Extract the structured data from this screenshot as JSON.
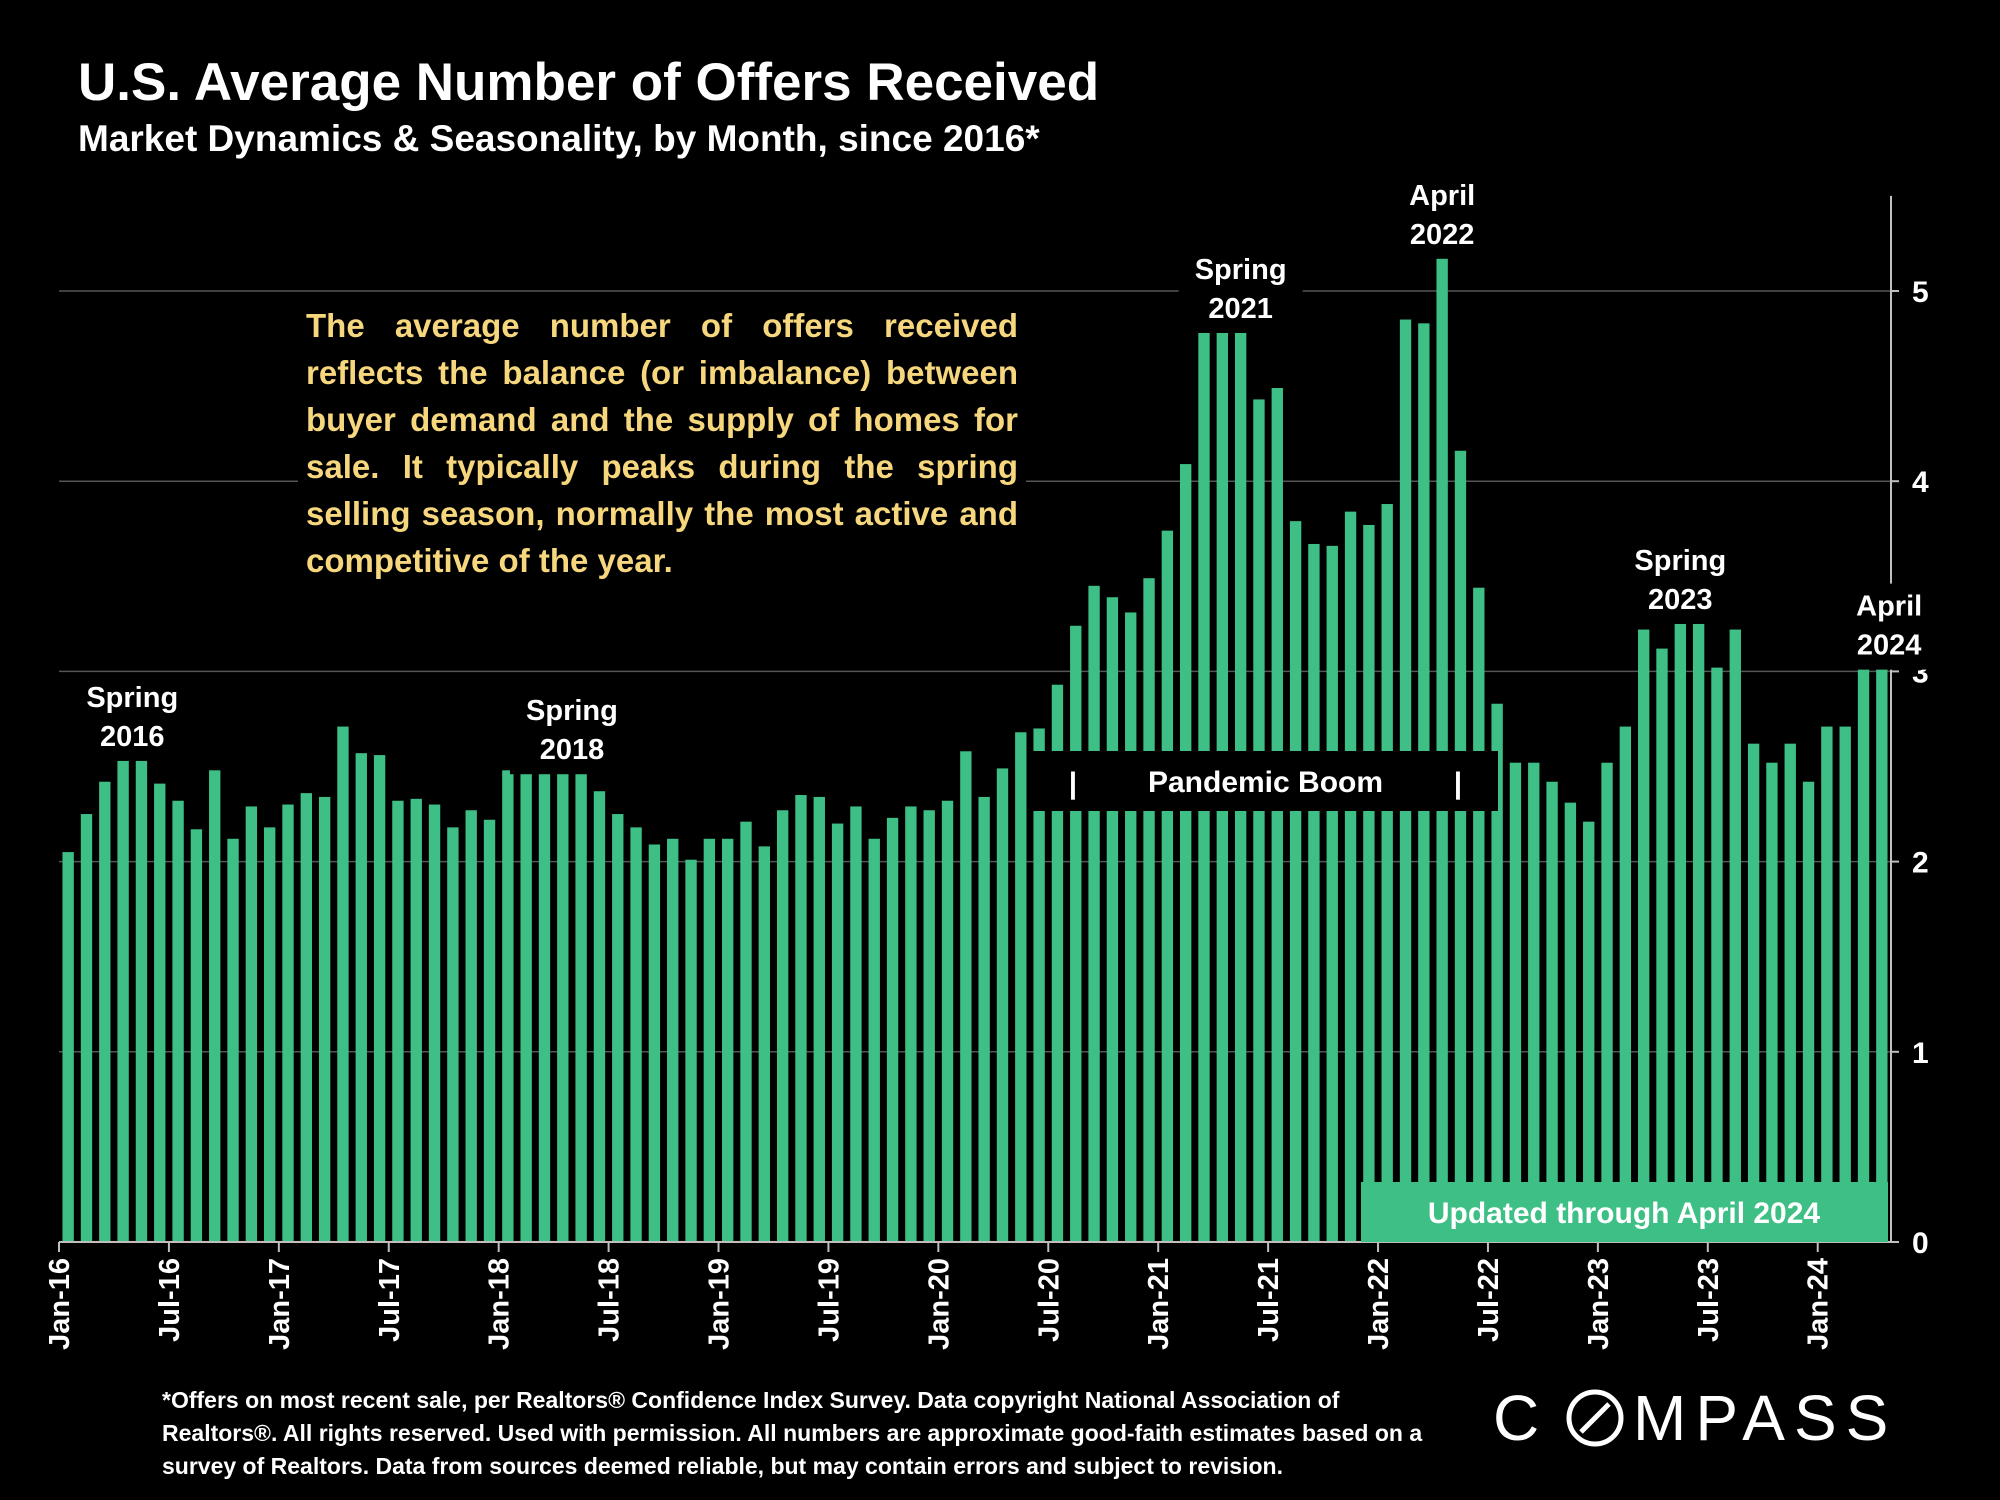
{
  "title": "U.S. Average Number of Offers Received",
  "subtitle": "Market Dynamics & Seasonality, by Month, since 2016*",
  "description": "The average number of offers received reflects the balance (or imbalance) between buyer demand and the supply of homes for sale. It typically peaks during the spring selling season, normally the most active and competitive of the year.",
  "footnote": "*Offers on most recent sale, per Realtors® Confidence Index Survey. Data copyright National Association of Realtors®. All rights reserved. Used with permission. All numbers are approximate good-faith estimates based on a survey of Realtors. Data from sources deemed reliable, but may contain errors and subject to revision.",
  "logo_text": "COMPASS",
  "colors": {
    "bar": "#3dbf85",
    "background": "#000000",
    "text": "#ffffff",
    "description_text": "#f6d77d",
    "gridline": "#555555"
  },
  "chart_data": {
    "type": "bar",
    "x_tick_labels": [
      "Jan-16",
      "Jul-16",
      "Jan-17",
      "Jul-17",
      "Jan-18",
      "Jul-18",
      "Jan-19",
      "Jul-19",
      "Jan-20",
      "Jul-20",
      "Jan-21",
      "Jul-21",
      "Jan-22",
      "Jul-22",
      "Jan-23",
      "Jul-23",
      "Jan-24"
    ],
    "y_ticks": [
      0,
      1,
      2,
      3,
      4,
      5
    ],
    "ylim": [
      0,
      5.5
    ],
    "y_axis_side": "right",
    "grid": true,
    "series": [
      {
        "values": [
          2.05,
          2.25,
          2.42,
          2.6,
          2.62,
          2.41,
          2.32,
          2.17,
          2.48,
          2.12,
          2.29,
          2.18,
          2.3,
          2.36,
          2.34,
          2.71,
          2.57,
          2.56,
          2.32,
          2.33,
          2.3,
          2.18,
          2.27,
          2.22,
          2.48,
          2.57,
          2.53,
          2.54,
          2.52,
          2.37,
          2.25,
          2.18,
          2.09,
          2.12,
          2.01,
          2.12,
          2.12,
          2.21,
          2.08,
          2.27,
          2.35,
          2.34,
          2.2,
          2.29,
          2.12,
          2.23,
          2.29,
          2.27,
          2.32,
          2.58,
          2.34,
          2.49,
          2.68,
          2.7,
          2.93,
          3.24,
          3.45,
          3.39,
          3.31,
          3.49,
          3.74,
          4.09,
          4.84,
          5.06,
          4.97,
          4.43,
          4.49,
          3.79,
          3.67,
          3.66,
          3.84,
          3.77,
          3.88,
          4.85,
          4.83,
          5.47,
          4.16,
          3.44,
          2.83,
          2.52,
          2.52,
          2.42,
          2.31,
          2.21,
          2.52,
          2.71,
          3.22,
          3.12,
          3.32,
          3.51,
          3.02,
          3.22,
          2.62,
          2.52,
          2.62,
          2.42,
          2.71,
          2.71,
          3.12,
          3.22
        ]
      }
    ],
    "annotations": [
      {
        "lines": [
          "Spring",
          "2016"
        ],
        "index": 3.5,
        "value": 2.95
      },
      {
        "lines": [
          "Spring",
          "2018"
        ],
        "index": 27.5,
        "value": 2.88
      },
      {
        "lines": [
          "Spring",
          "2021"
        ],
        "index": 64,
        "value": 5.2
      },
      {
        "lines": [
          "April",
          "2022"
        ],
        "index": 75,
        "value": 5.59
      },
      {
        "lines": [
          "Spring",
          "2023"
        ],
        "index": 88,
        "value": 3.67
      },
      {
        "lines": [
          "April",
          "2024"
        ],
        "index": 99.4,
        "value": 3.43
      }
    ],
    "period_label": {
      "text": "Pandemic Boom",
      "left_marker": "|",
      "right_marker": "|",
      "start_index": 54,
      "end_index": 78
    },
    "updated_label": "Updated through April 2024"
  }
}
